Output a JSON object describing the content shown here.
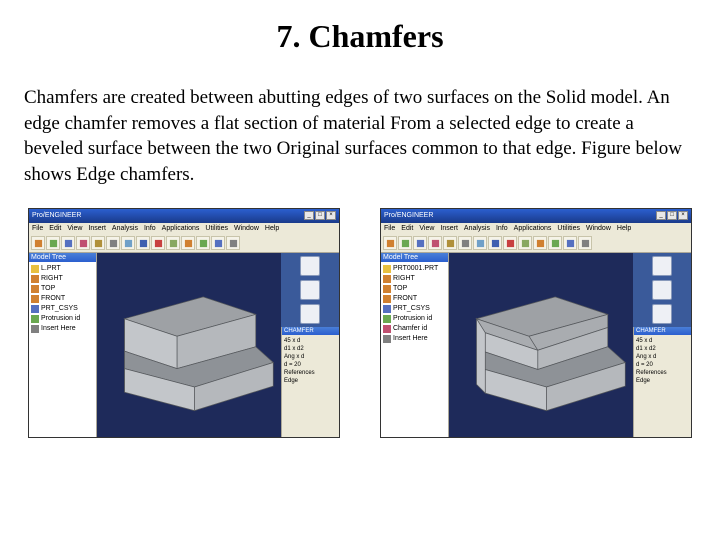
{
  "title": "7. Chamfers",
  "body": "Chamfers are created between abutting edges of two surfaces on the Solid model. An edge chamfer removes a flat section of material From a selected edge to create a beveled surface between the two Original surfaces common to that edge.  Figure below shows Edge chamfers.",
  "cad": {
    "window_title": "Pro/ENGINEER",
    "menus": [
      "File",
      "Edit",
      "View",
      "Insert",
      "Analysis",
      "Info",
      "Applications",
      "Utilities",
      "Window",
      "Help"
    ],
    "toolbar_colors": [
      "#d08030",
      "#6aa850",
      "#5570c0",
      "#c05070",
      "#b0903a",
      "#808080",
      "#70a0c8",
      "#4060b0",
      "#c84040",
      "#88a860",
      "#d08030",
      "#6aa850",
      "#5570c0",
      "#808080"
    ],
    "tree_title": "Model Tree",
    "tree": [
      {
        "label": "L.PRT",
        "color": "#e8c040"
      },
      {
        "label": "RIGHT",
        "color": "#d08030"
      },
      {
        "label": "TOP",
        "color": "#d08030"
      },
      {
        "label": "FRONT",
        "color": "#d08030"
      },
      {
        "label": "PRT_CSYS",
        "color": "#5570c0"
      },
      {
        "label": "Protrusion id",
        "color": "#6aa850"
      },
      {
        "label": "Insert Here",
        "color": "#808080"
      }
    ],
    "props_title": "CHAMFER",
    "props": [
      "45 x d",
      "d1 x d2",
      "Ang x d",
      "d = 20",
      "References",
      "Edge"
    ],
    "tree2": [
      {
        "label": "PRT0001.PRT",
        "color": "#e8c040"
      },
      {
        "label": "RIGHT",
        "color": "#d08030"
      },
      {
        "label": "TOP",
        "color": "#d08030"
      },
      {
        "label": "FRONT",
        "color": "#d08030"
      },
      {
        "label": "PRT_CSYS",
        "color": "#5570c0"
      },
      {
        "label": "Protrusion id",
        "color": "#6aa850"
      },
      {
        "label": "Chamfer id",
        "color": "#c05070"
      },
      {
        "label": "Insert Here",
        "color": "#808080"
      }
    ],
    "solid": {
      "face_top": "#9ea1a5",
      "face_step": "#8e9297",
      "face_front": "#c3c6ca",
      "face_side": "#b5b8bc",
      "edge": "#55585c",
      "bg": "#1e2a5a"
    }
  }
}
